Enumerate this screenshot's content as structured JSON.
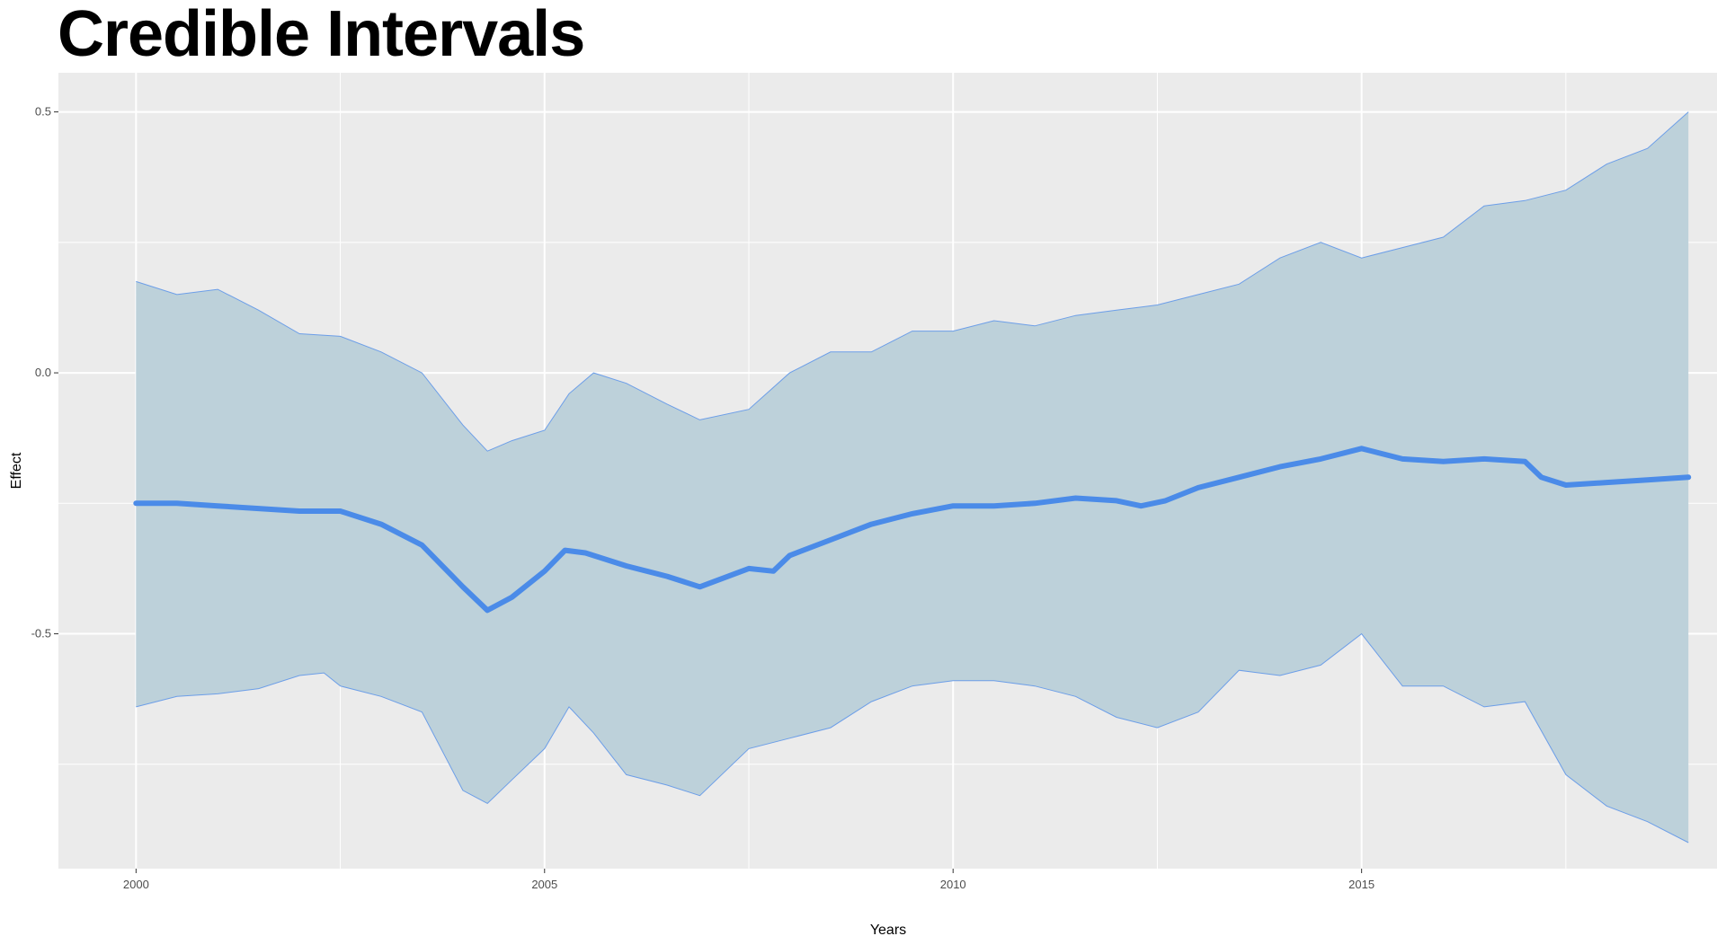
{
  "chart_data": {
    "type": "area",
    "title": "Credible Intervals",
    "xlabel": "Years",
    "ylabel": "Effect",
    "xlim": [
      1999.05,
      2019.35
    ],
    "ylim": [
      -0.95,
      0.575
    ],
    "x_ticks": [
      2000,
      2005,
      2010,
      2015
    ],
    "x_tick_labels": [
      "2000",
      "2005",
      "2010",
      "2015"
    ],
    "y_ticks": [
      0.5,
      0.0,
      -0.5
    ],
    "y_tick_labels": [
      "0.5",
      "0.0",
      "-0.5"
    ],
    "grid": true,
    "legend": "none",
    "colors": {
      "panel_background": "#EBEBEB",
      "grid": "#FFFFFF",
      "ribbon_fill": "#BDD1DA",
      "ribbon_border": "#6C9EE8",
      "mean_line": "#4B8BE8"
    },
    "series": [
      {
        "role": "mean",
        "x": [
          2000.0,
          2000.5,
          2001.0,
          2001.5,
          2002.0,
          2002.5,
          2003.0,
          2003.5,
          2004.0,
          2004.3,
          2004.6,
          2005.0,
          2005.25,
          2005.5,
          2006.0,
          2006.5,
          2006.9,
          2007.5,
          2007.8,
          2008.0,
          2008.5,
          2009.0,
          2009.5,
          2010.0,
          2010.5,
          2011.0,
          2011.5,
          2012.0,
          2012.3,
          2012.6,
          2013.0,
          2013.5,
          2014.0,
          2014.5,
          2015.0,
          2015.5,
          2016.0,
          2016.5,
          2017.0,
          2017.2,
          2017.5,
          2018.0,
          2018.5,
          2019.0
        ],
        "y": [
          -0.25,
          -0.25,
          -0.255,
          -0.26,
          -0.265,
          -0.265,
          -0.29,
          -0.33,
          -0.41,
          -0.455,
          -0.43,
          -0.38,
          -0.34,
          -0.345,
          -0.37,
          -0.39,
          -0.41,
          -0.375,
          -0.38,
          -0.35,
          -0.32,
          -0.29,
          -0.27,
          -0.255,
          -0.255,
          -0.25,
          -0.24,
          -0.245,
          -0.255,
          -0.245,
          -0.22,
          -0.2,
          -0.18,
          -0.165,
          -0.145,
          -0.165,
          -0.17,
          -0.165,
          -0.17,
          -0.2,
          -0.215,
          -0.21,
          -0.205,
          -0.2
        ]
      },
      {
        "role": "upper",
        "x": [
          2000.0,
          2000.5,
          2001.0,
          2001.5,
          2002.0,
          2002.5,
          2003.0,
          2003.5,
          2004.0,
          2004.3,
          2004.6,
          2005.0,
          2005.3,
          2005.6,
          2006.0,
          2006.5,
          2006.9,
          2007.5,
          2008.0,
          2008.5,
          2009.0,
          2009.5,
          2010.0,
          2010.5,
          2011.0,
          2011.5,
          2012.0,
          2012.5,
          2013.0,
          2013.5,
          2014.0,
          2014.5,
          2015.0,
          2015.5,
          2016.0,
          2016.5,
          2017.0,
          2017.5,
          2018.0,
          2018.5,
          2019.0
        ],
        "y": [
          0.175,
          0.15,
          0.16,
          0.12,
          0.075,
          0.07,
          0.04,
          0.0,
          -0.1,
          -0.15,
          -0.13,
          -0.11,
          -0.04,
          0.0,
          -0.02,
          -0.06,
          -0.09,
          -0.07,
          0.0,
          0.04,
          0.04,
          0.08,
          0.08,
          0.1,
          0.09,
          0.11,
          0.12,
          0.13,
          0.15,
          0.17,
          0.22,
          0.25,
          0.22,
          0.24,
          0.26,
          0.32,
          0.33,
          0.35,
          0.4,
          0.43,
          0.5
        ]
      },
      {
        "role": "lower",
        "x": [
          2000.0,
          2000.5,
          2001.0,
          2001.5,
          2002.0,
          2002.3,
          2002.5,
          2003.0,
          2003.5,
          2004.0,
          2004.3,
          2004.6,
          2005.0,
          2005.3,
          2005.6,
          2006.0,
          2006.5,
          2006.9,
          2007.5,
          2008.0,
          2008.5,
          2009.0,
          2009.5,
          2010.0,
          2010.5,
          2011.0,
          2011.5,
          2012.0,
          2012.5,
          2013.0,
          2013.5,
          2014.0,
          2014.5,
          2015.0,
          2015.5,
          2016.0,
          2016.5,
          2017.0,
          2017.5,
          2018.0,
          2018.5,
          2019.0
        ],
        "y": [
          -0.64,
          -0.62,
          -0.615,
          -0.605,
          -0.58,
          -0.575,
          -0.6,
          -0.62,
          -0.65,
          -0.8,
          -0.825,
          -0.78,
          -0.72,
          -0.64,
          -0.69,
          -0.77,
          -0.79,
          -0.81,
          -0.72,
          -0.7,
          -0.68,
          -0.63,
          -0.6,
          -0.59,
          -0.59,
          -0.6,
          -0.62,
          -0.66,
          -0.68,
          -0.65,
          -0.57,
          -0.58,
          -0.56,
          -0.5,
          -0.6,
          -0.6,
          -0.64,
          -0.63,
          -0.77,
          -0.83,
          -0.86,
          -0.9
        ]
      }
    ]
  }
}
